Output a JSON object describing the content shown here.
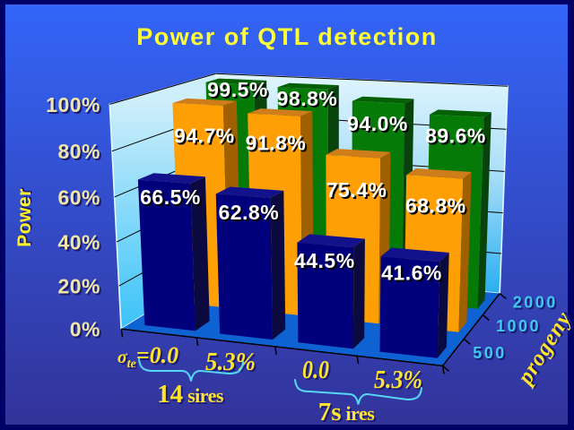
{
  "slide": {
    "title": "Power of QTL detection",
    "colors": {
      "background_top": "#3365f8",
      "background_bottom": "#333399",
      "frame_border": "#000066",
      "title_text": "#ffff33",
      "axis_tick_text": "#ede6a8",
      "axis_title_text": "#fdf32b",
      "category_text": "#ffe42e",
      "series_text": "#3fc8f0",
      "brace": "#55d8f8",
      "data_label_text": "#ffffff",
      "wall_top": "#dff5fd",
      "wall_bottom": "#2cb0f0",
      "floor": "#0e62d2"
    }
  },
  "chart_data": {
    "type": "bar",
    "projection": "3d-column",
    "title": "Power of QTL detection",
    "value_axis": {
      "title": "Power",
      "min": 0,
      "max": 100,
      "step": 20,
      "tick_labels": [
        "0%",
        "20%",
        "40%",
        "60%",
        "80%",
        "100%"
      ]
    },
    "category_axis": {
      "labels": [
        "σte=0.0",
        "5.3%",
        "0.0",
        "5.3%"
      ],
      "label_parts": [
        {
          "prefix": "σ",
          "sub": "te",
          "rest": "=0.0"
        },
        {
          "prefix": "",
          "sub": "",
          "rest": "5.3%"
        },
        {
          "prefix": "",
          "sub": "",
          "rest": "0.0"
        },
        {
          "prefix": "",
          "sub": "",
          "rest": "5.3%"
        }
      ],
      "groups": [
        {
          "label_big": "14",
          "label_small": " sires",
          "from": 0,
          "to": 1
        },
        {
          "label_big": "7s",
          "label_small": " ires",
          "from": 2,
          "to": 3
        }
      ]
    },
    "series_axis": {
      "title": "progeny",
      "labels": [
        "500",
        "1000",
        "2000"
      ]
    },
    "series": [
      {
        "name": "500",
        "values": [
          66.5,
          62.8,
          44.5,
          41.6
        ],
        "front": "#00007d",
        "top": "#12128c",
        "side": "#0a0a40"
      },
      {
        "name": "1000",
        "values": [
          94.7,
          91.8,
          75.4,
          68.8
        ],
        "front": "#ff9f06",
        "top": "#ce7d1a",
        "side": "#a16000"
      },
      {
        "name": "2000",
        "values": [
          99.5,
          98.8,
          94.0,
          89.6
        ],
        "front": "#067a06",
        "top": "#056005",
        "side": "#07430a"
      }
    ],
    "legend": "none",
    "grid": true
  }
}
